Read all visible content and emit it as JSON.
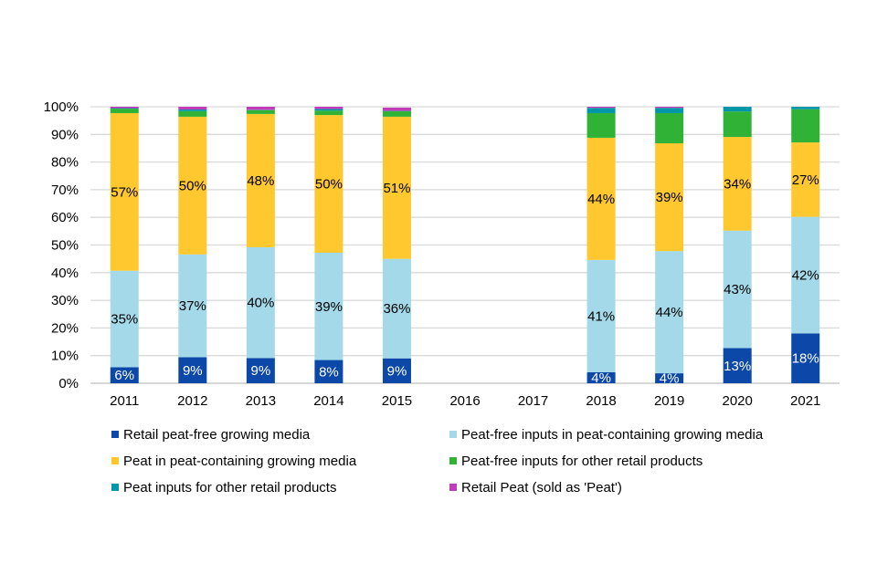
{
  "chart_data": {
    "type": "bar",
    "stacked": true,
    "categories": [
      "2011",
      "2012",
      "2013",
      "2014",
      "2015",
      "2016",
      "2017",
      "2018",
      "2019",
      "2020",
      "2021"
    ],
    "ylim": [
      0,
      100
    ],
    "yticks": [
      "0%",
      "10%",
      "20%",
      "30%",
      "40%",
      "50%",
      "60%",
      "70%",
      "80%",
      "90%",
      "100%"
    ],
    "grid": true,
    "legend_placement": "bottom",
    "series": [
      {
        "name": "Retail peat-free growing media",
        "color": "#0B48A8",
        "values": [
          5.8,
          9.4,
          9.1,
          8.4,
          9,
          null,
          null,
          4,
          3.6,
          12.7,
          18
        ],
        "labels": [
          "6%",
          "9%",
          "9%",
          "8%",
          "9%",
          "",
          "",
          "4%",
          "4%",
          "13%",
          "18%"
        ],
        "label_color": "#ffffff"
      },
      {
        "name": "Peat-free inputs in peat-containing growing media",
        "color": "#A3D9E8",
        "values": [
          34.9,
          37.2,
          40.1,
          38.8,
          36,
          null,
          null,
          40.6,
          44.2,
          42.5,
          42.2
        ],
        "labels": [
          "35%",
          "37%",
          "40%",
          "39%",
          "36%",
          "",
          "",
          "41%",
          "44%",
          "43%",
          "42%"
        ],
        "label_color": "#000000"
      },
      {
        "name": "Peat in peat-containing growing media",
        "color": "#FFC82F",
        "values": [
          57,
          49.8,
          48.2,
          49.8,
          51.4,
          null,
          null,
          44.2,
          39,
          33.9,
          26.9
        ],
        "labels": [
          "57%",
          "50%",
          "48%",
          "50%",
          "51%",
          "",
          "",
          "44%",
          "39%",
          "34%",
          "27%"
        ],
        "label_color": "#000000"
      },
      {
        "name": "Peat-free inputs for other retail products",
        "color": "#30B236",
        "values": [
          1.6,
          2,
          1.4,
          1.6,
          2,
          null,
          null,
          8.9,
          10.9,
          9.2,
          12
        ],
        "labels": [],
        "label_color": "#000000"
      },
      {
        "name": "Peat inputs for other retail products",
        "color": "#0096AA",
        "values": [
          0.2,
          0.6,
          0.1,
          0.6,
          0.1,
          null,
          null,
          1.9,
          1.9,
          1.7,
          0.9
        ],
        "labels": [],
        "label_color": "#000000"
      },
      {
        "name": "Retail Peat (sold as 'Peat')",
        "color": "#C23BB8",
        "values": [
          0.5,
          1,
          1.1,
          0.8,
          1.2,
          null,
          null,
          0.4,
          0.4,
          0,
          0
        ],
        "labels": [],
        "label_color": "#000000"
      }
    ]
  }
}
